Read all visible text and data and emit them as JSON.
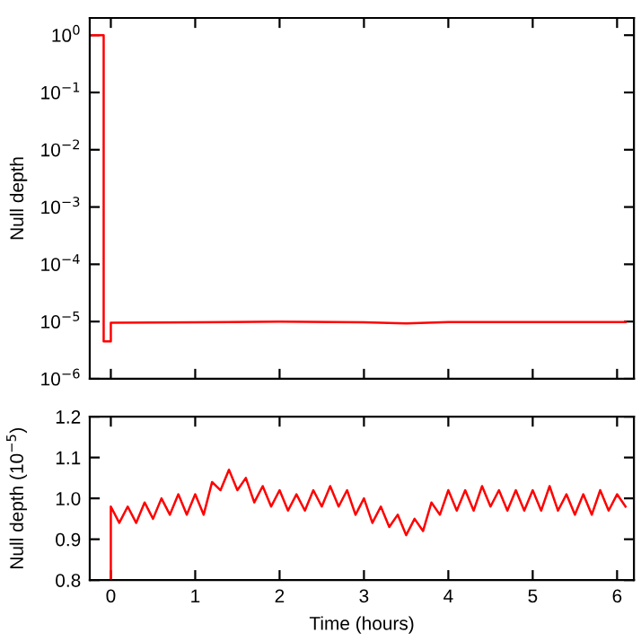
{
  "chart_data": [
    {
      "type": "line",
      "ylabel": "Null depth",
      "log": "y",
      "xlim": [
        -0.25,
        6.2
      ],
      "ylim": [
        1e-06,
        2
      ],
      "xticks": [
        0,
        1,
        2,
        3,
        4,
        5,
        6
      ],
      "yticks": [
        {
          "value": 1e-06,
          "label": "10$^{−6}$"
        },
        {
          "value": 1e-05,
          "label": "10$^{−5}$"
        },
        {
          "value": 0.0001,
          "label": "10$^{−4}$"
        },
        {
          "value": 0.001,
          "label": "10$^{−3}$"
        },
        {
          "value": 0.01,
          "label": "10$^{−2}$"
        },
        {
          "value": 0.1,
          "label": "10$^{−1}$"
        },
        {
          "value": 1,
          "label": "10$^{0}$"
        }
      ],
      "tick_labels": "y",
      "grid": false,
      "legend": false,
      "series": [
        {
          "color": "#ff0000",
          "x": [
            -0.23,
            -0.085,
            -0.085,
            0.0,
            0.0,
            1.0,
            2.0,
            3.0,
            3.5,
            4.0,
            5.0,
            6.1
          ],
          "values": [
            1,
            1,
            4.5e-06,
            4.5e-06,
            9.5e-06,
            9.7e-06,
            1e-05,
            9.7e-06,
            9.3e-06,
            9.8e-06,
            9.8e-06,
            9.8e-06
          ]
        }
      ]
    },
    {
      "type": "line",
      "xlabel": "Time (hours)",
      "ylabel": "Null depth (10$^{−5}$)",
      "xlim": [
        -0.25,
        6.2
      ],
      "ylim": [
        0.8,
        1.2
      ],
      "xticks": [
        0,
        1,
        2,
        3,
        4,
        5,
        6
      ],
      "yticks": [
        {
          "value": 0.8,
          "label": "0.8"
        },
        {
          "value": 0.9,
          "label": "0.9"
        },
        {
          "value": 1.0,
          "label": "1.0"
        },
        {
          "value": 1.1,
          "label": "1.1"
        },
        {
          "value": 1.2,
          "label": "1.2"
        }
      ],
      "grid": false,
      "legend": false,
      "series": [
        {
          "color": "#ff0000",
          "x": [
            0,
            0,
            0.1,
            0.2,
            0.3,
            0.4,
            0.5,
            0.6,
            0.7,
            0.8,
            0.9,
            1.0,
            1.1,
            1.2,
            1.3,
            1.4,
            1.5,
            1.6,
            1.7,
            1.8,
            1.9,
            2.0,
            2.1,
            2.2,
            2.3,
            2.4,
            2.5,
            2.6,
            2.7,
            2.8,
            2.9,
            3.0,
            3.1,
            3.2,
            3.3,
            3.4,
            3.5,
            3.6,
            3.7,
            3.8,
            3.9,
            4.0,
            4.1,
            4.2,
            4.3,
            4.4,
            4.5,
            4.6,
            4.7,
            4.8,
            4.9,
            5.0,
            5.1,
            5.2,
            5.3,
            5.4,
            5.5,
            5.6,
            5.7,
            5.8,
            5.9,
            6.0,
            6.1
          ],
          "values": [
            0.8,
            0.98,
            0.94,
            0.98,
            0.94,
            0.99,
            0.95,
            1.0,
            0.96,
            1.01,
            0.96,
            1.01,
            0.96,
            1.04,
            1.02,
            1.07,
            1.02,
            1.05,
            0.99,
            1.03,
            0.98,
            1.02,
            0.97,
            1.01,
            0.97,
            1.02,
            0.98,
            1.03,
            0.98,
            1.02,
            0.96,
            1.0,
            0.94,
            0.98,
            0.93,
            0.96,
            0.91,
            0.95,
            0.92,
            0.99,
            0.96,
            1.02,
            0.97,
            1.02,
            0.97,
            1.03,
            0.98,
            1.02,
            0.97,
            1.02,
            0.97,
            1.02,
            0.97,
            1.03,
            0.97,
            1.01,
            0.96,
            1.01,
            0.96,
            1.02,
            0.97,
            1.01,
            0.98
          ]
        }
      ]
    }
  ]
}
